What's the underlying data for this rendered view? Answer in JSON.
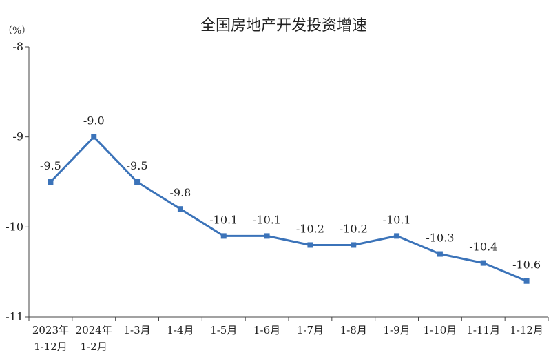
{
  "chart_data": {
    "type": "line",
    "title": "全国房地产开发投资增速",
    "unit": "（%）",
    "categories": [
      [
        "2023年",
        "1-12月"
      ],
      [
        "2024年",
        "1-2月"
      ],
      [
        "1-3月"
      ],
      [
        "1-4月"
      ],
      [
        "1-5月"
      ],
      [
        "1-6月"
      ],
      [
        "1-7月"
      ],
      [
        "1-8月"
      ],
      [
        "1-9月"
      ],
      [
        "1-10月"
      ],
      [
        "1-11月"
      ],
      [
        "1-12月"
      ]
    ],
    "values": [
      -9.5,
      -9.0,
      -9.5,
      -9.8,
      -10.1,
      -10.1,
      -10.2,
      -10.2,
      -10.1,
      -10.3,
      -10.4,
      -10.6
    ],
    "data_labels": [
      "-9.5",
      "-9.0",
      "-9.5",
      "-9.8",
      "-10.1",
      "-10.1",
      "-10.2",
      "-10.2",
      "-10.1",
      "-10.3",
      "-10.4",
      "-10.6"
    ],
    "yticks": [
      -8,
      -9,
      -10,
      -11
    ],
    "ytick_labels": [
      "-8",
      "-9",
      "-10",
      "-11"
    ],
    "ylim": [
      -11,
      -8
    ],
    "grid": false,
    "legend": "none",
    "line_color": "#3b73b9"
  }
}
